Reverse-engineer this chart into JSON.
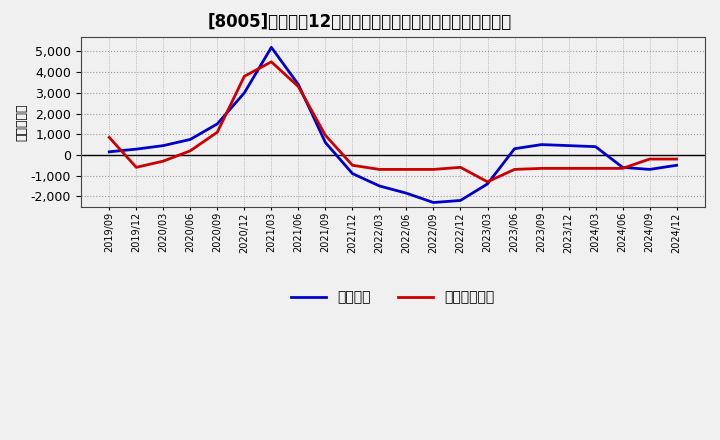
{
  "title": "[8005]　利益だ12か月移動合計の対前年同期増減額の推移",
  "ylabel": "（百万円）",
  "background_color": "#f0f0f0",
  "plot_background": "#f0f0f0",
  "grid_color": "#999999",
  "x_labels": [
    "2019/09",
    "2019/12",
    "2020/03",
    "2020/06",
    "2020/09",
    "2020/12",
    "2021/03",
    "2021/06",
    "2021/09",
    "2021/12",
    "2022/03",
    "2022/06",
    "2022/09",
    "2022/12",
    "2023/03",
    "2023/06",
    "2023/09",
    "2023/12",
    "2024/03",
    "2024/06",
    "2024/09",
    "2024/12"
  ],
  "keijo_rieki": [
    150,
    280,
    450,
    750,
    1500,
    3000,
    5200,
    3400,
    600,
    -900,
    -1500,
    -1850,
    -2300,
    -2200,
    -1400,
    300,
    500,
    450,
    400,
    -600,
    -700,
    -500
  ],
  "touki_junrieki": [
    850,
    -600,
    -300,
    200,
    1100,
    3800,
    4500,
    3300,
    950,
    -500,
    -700,
    -700,
    -700,
    -600,
    -1300,
    -700,
    -650,
    -650,
    -650,
    -650,
    -200,
    -200
  ],
  "line_color_keijo": "#0000cc",
  "line_color_touki": "#cc0000",
  "ylim": [
    -2500,
    5700
  ],
  "yticks": [
    -2000,
    -1000,
    0,
    1000,
    2000,
    3000,
    4000,
    5000
  ],
  "legend_keijo": "経常利益",
  "legend_touki": "当期経常利益",
  "title_fontsize": 12,
  "axis_fontsize": 9,
  "legend_fontsize": 10
}
